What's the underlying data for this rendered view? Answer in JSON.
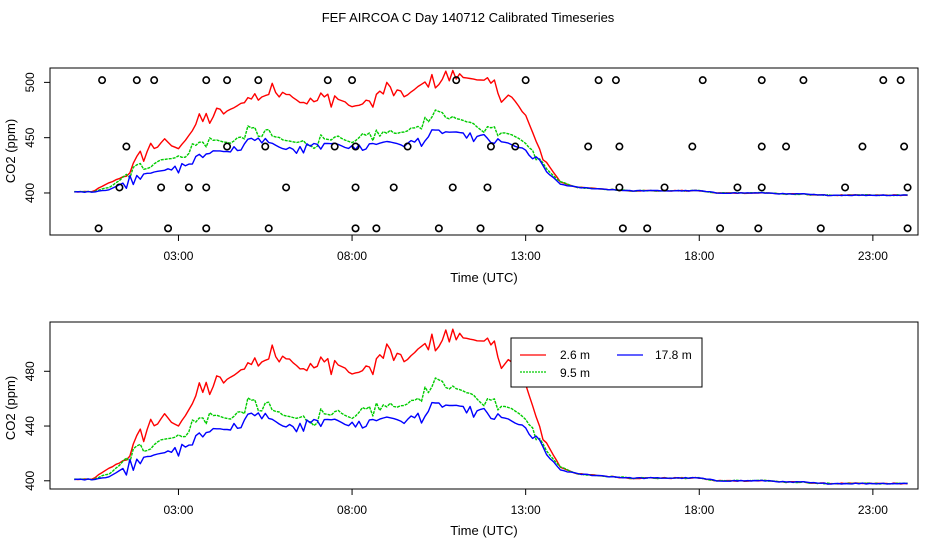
{
  "chart_data": {
    "type": "line",
    "title": "FEF AIRCOA C  Day 140712  Calibrated Timeseries",
    "xlabel": "Time (UTC)",
    "ylabel": "CO2 (ppm)",
    "xlim": [
      -0.7,
      24.3
    ],
    "x_ticks": [
      3,
      8,
      13,
      18,
      23
    ],
    "x_tick_labels": [
      "03:00",
      "08:00",
      "13:00",
      "18:00",
      "23:00"
    ],
    "colors": {
      "series_0": "#ff0000",
      "series_1": "#00cc00",
      "series_2": "#0000ff"
    },
    "legend": {
      "placement": "top-right",
      "entries": [
        "2.6 m",
        "9.5 m",
        "17.8 m"
      ]
    },
    "anchors": {
      "x": [
        0,
        0.5,
        1,
        1.5,
        2,
        2.5,
        3,
        3.5,
        4,
        4.5,
        5,
        5.5,
        6,
        6.5,
        7,
        7.5,
        8,
        8.5,
        9,
        9.5,
        10,
        10.5,
        11,
        11.5,
        12,
        12.5,
        13,
        13.5,
        14,
        14.5,
        15,
        15.5,
        16,
        16.5,
        17,
        17.5,
        18,
        18.5,
        19,
        19.5,
        20,
        20.5,
        21,
        21.5,
        22,
        22.5,
        23,
        23.5,
        24
      ],
      "series": [
        {
          "name": "2.6 m",
          "values": [
            401,
            401,
            409,
            416,
            436,
            447,
            440,
            462,
            470,
            475,
            485,
            490,
            493,
            482,
            483,
            487,
            478,
            482,
            494,
            487,
            498,
            503,
            506,
            503,
            498,
            488,
            470,
            432,
            410,
            405,
            404,
            403,
            402,
            402,
            402,
            402,
            402,
            400,
            400,
            400,
            400,
            399,
            399,
            398,
            398,
            398,
            398,
            398,
            398
          ]
        },
        {
          "name": "9.5 m",
          "values": [
            401,
            401,
            405,
            415,
            425,
            430,
            432,
            443,
            448,
            445,
            455,
            455,
            448,
            445,
            447,
            452,
            445,
            452,
            454,
            455,
            462,
            470,
            468,
            462,
            458,
            456,
            445,
            425,
            410,
            405,
            404,
            403,
            402,
            402,
            402,
            402,
            402,
            400,
            400,
            400,
            400,
            399,
            399,
            398,
            398,
            398,
            398,
            398,
            398
          ]
        },
        {
          "name": "17.8 m",
          "values": [
            401,
            401,
            403,
            410,
            418,
            420,
            422,
            430,
            438,
            438,
            445,
            448,
            440,
            438,
            442,
            445,
            440,
            443,
            447,
            443,
            448,
            455,
            455,
            450,
            447,
            445,
            438,
            422,
            408,
            405,
            404,
            403,
            402,
            402,
            402,
            402,
            402,
            400,
            400,
            400,
            400,
            399,
            399,
            398,
            398,
            398,
            398,
            398,
            398
          ]
        }
      ]
    },
    "panels": [
      {
        "name": "timeseries-with-calibrations",
        "ylim": [
          362,
          513
        ],
        "y_ticks": [
          400,
          450,
          500
        ],
        "y_tick_labels": [
          "400",
          "450",
          "500"
        ],
        "has_legend": false,
        "calibration_points": {
          "x": [
            0.8,
            1.8,
            2.3,
            3.8,
            4.4,
            5.3,
            7.3,
            8.0,
            11.0,
            13.0,
            15.1,
            15.6,
            18.1,
            19.8,
            21.0,
            23.3,
            23.8,
            1.5,
            4.4,
            5.5,
            7.5,
            8.1,
            9.6,
            12.0,
            12.7,
            14.8,
            15.7,
            17.8,
            19.8,
            20.5,
            22.7,
            23.9,
            1.3,
            2.5,
            3.3,
            3.8,
            6.1,
            8.1,
            9.2,
            10.9,
            11.9,
            15.7,
            17.0,
            19.1,
            19.8,
            22.2,
            24.0,
            0.7,
            2.7,
            3.8,
            5.6,
            8.1,
            8.7,
            10.5,
            11.7,
            13.4,
            15.8,
            16.5,
            18.6,
            19.7,
            21.5,
            24.0
          ],
          "values": [
            502,
            502,
            502,
            502,
            502,
            502,
            502,
            502,
            502,
            502,
            502,
            502,
            502,
            502,
            502,
            502,
            502,
            442,
            442,
            442,
            442,
            442,
            442,
            442,
            442,
            442,
            442,
            442,
            442,
            442,
            442,
            442,
            405,
            405,
            405,
            405,
            405,
            405,
            405,
            405,
            405,
            405,
            405,
            405,
            405,
            405,
            405,
            368,
            368,
            368,
            368,
            368,
            368,
            368,
            368,
            368,
            368,
            368,
            368,
            368,
            368,
            368
          ]
        }
      },
      {
        "name": "timeseries-with-legend",
        "ylim": [
          394,
          516
        ],
        "y_ticks": [
          400,
          440,
          480
        ],
        "y_tick_labels": [
          "400",
          "440",
          "480"
        ],
        "has_legend": true
      }
    ]
  }
}
